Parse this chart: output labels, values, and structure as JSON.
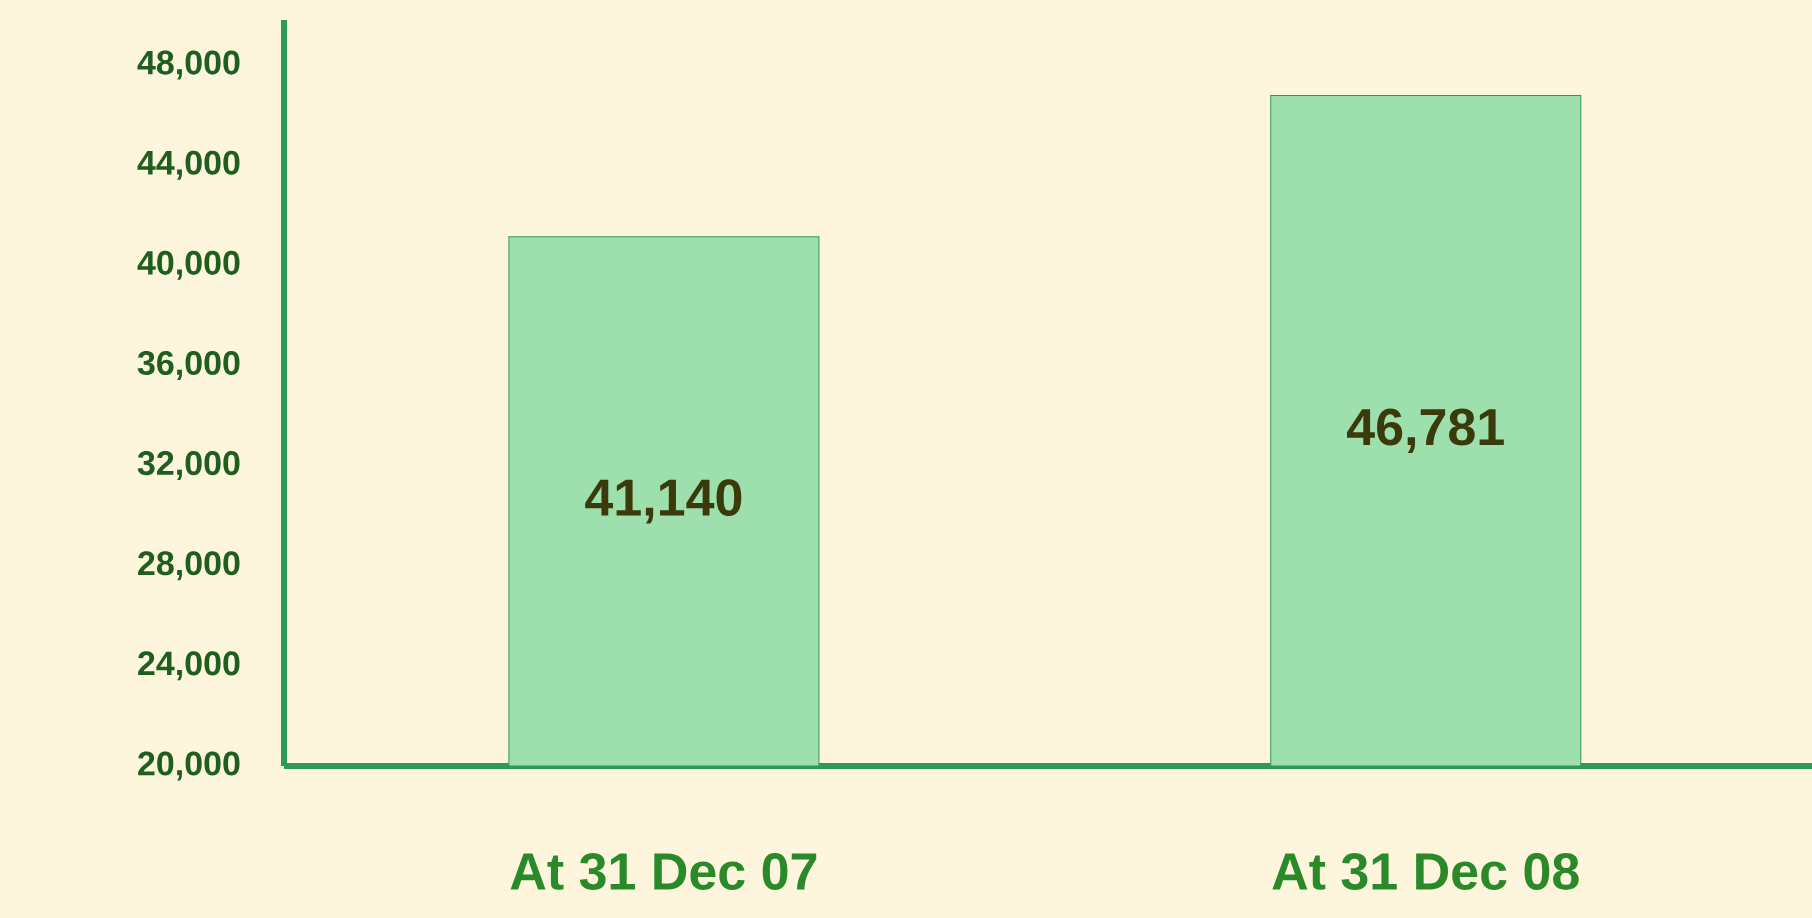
{
  "chart_data": {
    "type": "bar",
    "categories": [
      "At 31 Dec 07",
      "At 31 Dec 08"
    ],
    "values": [
      41140,
      46781
    ],
    "value_labels": [
      "41,140",
      "46,781"
    ],
    "color": "#9ee0ad",
    "ylim": [
      20000,
      49800
    ],
    "yticks": [
      {
        "value": 20000,
        "label": "20,000"
      },
      {
        "value": 24000,
        "label": "24,000"
      },
      {
        "value": 28000,
        "label": "28,000"
      },
      {
        "value": 32000,
        "label": "32,000"
      },
      {
        "value": 36000,
        "label": "36,000"
      },
      {
        "value": 40000,
        "label": "40,000"
      },
      {
        "value": 44000,
        "label": "44,000"
      },
      {
        "value": 48000,
        "label": "48,000"
      }
    ],
    "grid": false
  }
}
